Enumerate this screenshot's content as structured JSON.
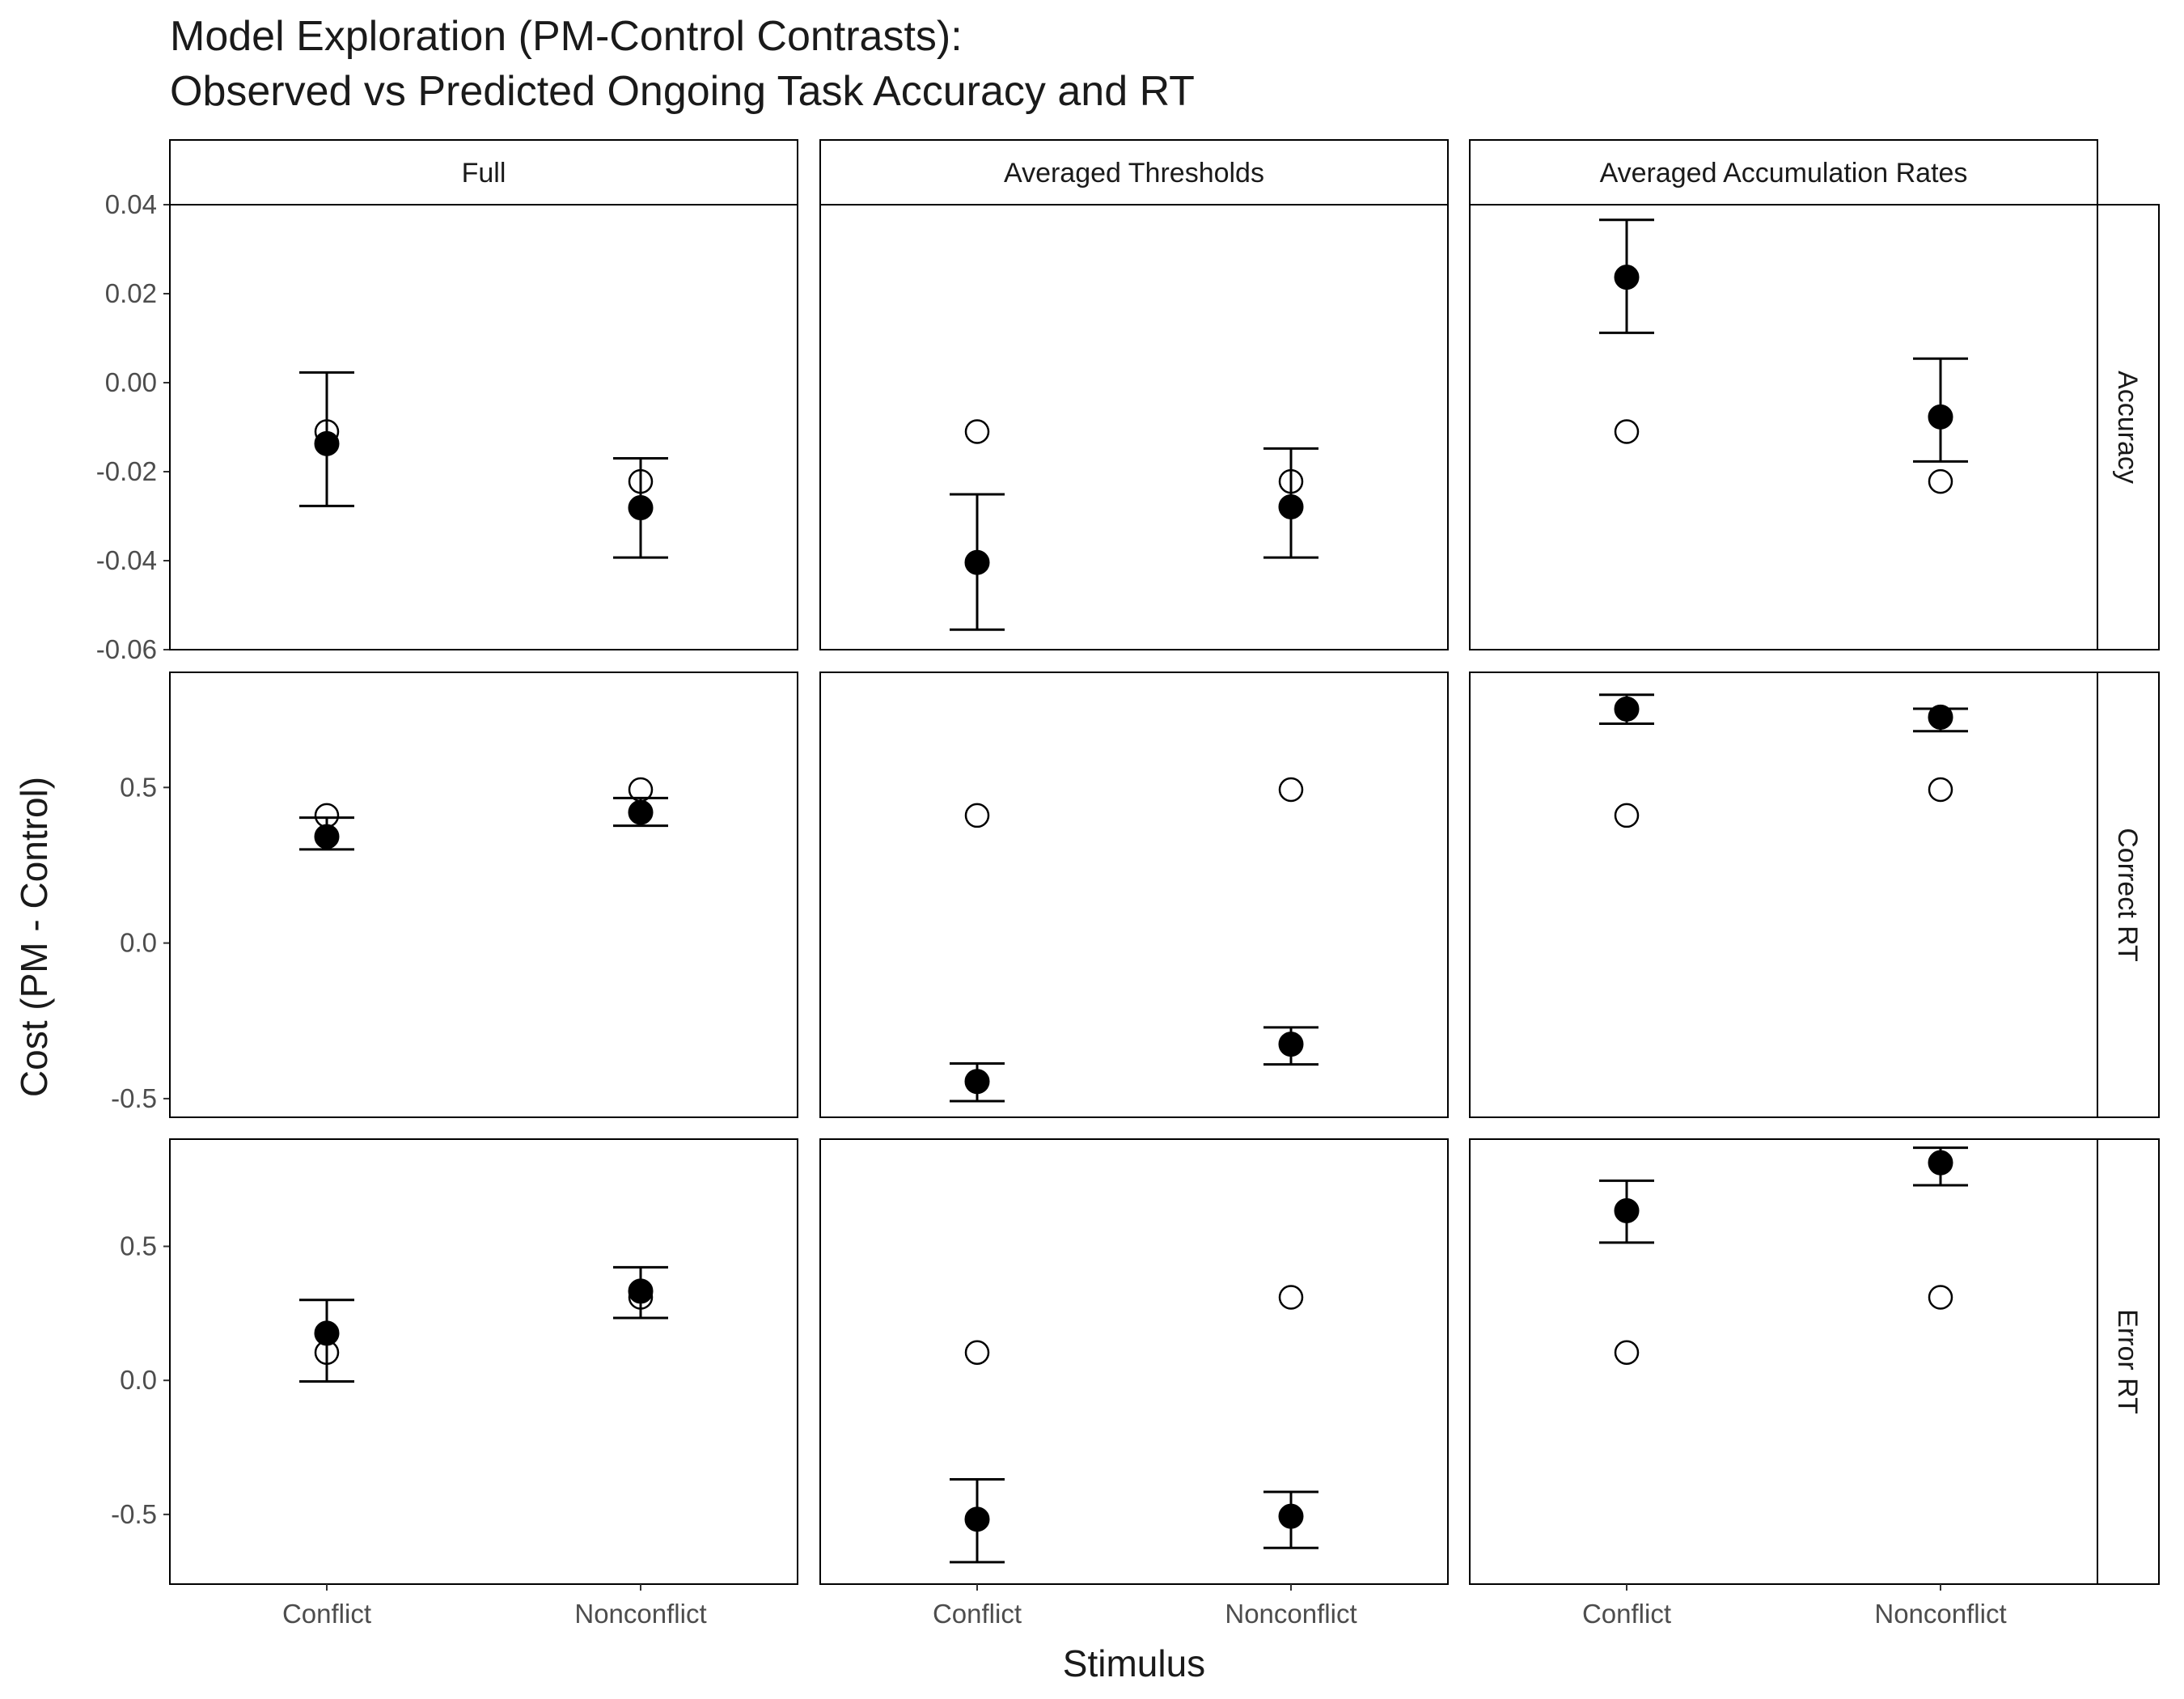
{
  "chart_data": {
    "type": "scatter",
    "title_lines": [
      "Model Exploration (PM-Control Contrasts):",
      "Observed vs Predicted Ongoing Task Accuracy and RT"
    ],
    "xlabel": "Stimulus",
    "ylabel": "Cost (PM - Control)",
    "categories": [
      "Conflict",
      "Nonconflict"
    ],
    "columns": [
      "Full",
      "Averaged Thresholds",
      "Averaged Accumulation Rates"
    ],
    "rows": [
      {
        "name": "Accuracy",
        "ylim": [
          -0.06,
          0.04
        ],
        "ticks": [
          {
            "value": 0.04,
            "label": "0.04"
          },
          {
            "value": 0.02,
            "label": "0.02"
          },
          {
            "value": 0.0,
            "label": "0.00"
          },
          {
            "value": -0.02,
            "label": "-0.02"
          },
          {
            "value": -0.04,
            "label": "-0.04"
          },
          {
            "value": -0.06,
            "label": "-0.06"
          }
        ]
      },
      {
        "name": "Correct RT",
        "ylim": [
          -0.56,
          0.87
        ],
        "ticks": [
          {
            "value": 0.5,
            "label": "0.5"
          },
          {
            "value": 0.0,
            "label": "0.0"
          },
          {
            "value": -0.5,
            "label": "-0.5"
          }
        ]
      },
      {
        "name": "Error RT",
        "ylim": [
          -0.76,
          0.9
        ],
        "ticks": [
          {
            "value": 0.5,
            "label": "0.5"
          },
          {
            "value": 0.0,
            "label": "0.0"
          },
          {
            "value": -0.5,
            "label": "-0.5"
          }
        ]
      }
    ],
    "panels": [
      {
        "row": "Accuracy",
        "column": "Full",
        "points": [
          {
            "category": "Conflict",
            "observed": -0.011,
            "predicted": -0.0137,
            "lower": -0.0277,
            "upper": 0.0023
          },
          {
            "category": "Nonconflict",
            "observed": -0.0222,
            "predicted": -0.0281,
            "lower": -0.0393,
            "upper": -0.017
          }
        ]
      },
      {
        "row": "Accuracy",
        "column": "Averaged Thresholds",
        "points": [
          {
            "category": "Conflict",
            "observed": -0.011,
            "predicted": -0.0404,
            "lower": -0.0555,
            "upper": -0.0251
          },
          {
            "category": "Nonconflict",
            "observed": -0.0222,
            "predicted": -0.0279,
            "lower": -0.0393,
            "upper": -0.0148
          }
        ]
      },
      {
        "row": "Accuracy",
        "column": "Averaged Accumulation Rates",
        "points": [
          {
            "category": "Conflict",
            "observed": -0.011,
            "predicted": 0.0237,
            "lower": 0.0112,
            "upper": 0.0366
          },
          {
            "category": "Nonconflict",
            "observed": -0.0222,
            "predicted": -0.0077,
            "lower": -0.0177,
            "upper": 0.0054
          }
        ]
      },
      {
        "row": "Correct RT",
        "column": "Full",
        "points": [
          {
            "category": "Conflict",
            "observed": 0.41,
            "predicted": 0.342,
            "lower": 0.301,
            "upper": 0.403
          },
          {
            "category": "Nonconflict",
            "observed": 0.493,
            "predicted": 0.42,
            "lower": 0.377,
            "upper": 0.466
          }
        ]
      },
      {
        "row": "Correct RT",
        "column": "Averaged Thresholds",
        "points": [
          {
            "category": "Conflict",
            "observed": 0.41,
            "predicted": -0.445,
            "lower": -0.508,
            "upper": -0.387
          },
          {
            "category": "Nonconflict",
            "observed": 0.493,
            "predicted": -0.325,
            "lower": -0.39,
            "upper": -0.271
          }
        ]
      },
      {
        "row": "Correct RT",
        "column": "Averaged Accumulation Rates",
        "points": [
          {
            "category": "Conflict",
            "observed": 0.41,
            "predicted": 0.752,
            "lower": 0.705,
            "upper": 0.798
          },
          {
            "category": "Nonconflict",
            "observed": 0.493,
            "predicted": 0.726,
            "lower": 0.681,
            "upper": 0.753
          }
        ]
      },
      {
        "row": "Error RT",
        "column": "Full",
        "points": [
          {
            "category": "Conflict",
            "observed": 0.104,
            "predicted": 0.176,
            "lower": -0.004,
            "upper": 0.3
          },
          {
            "category": "Nonconflict",
            "observed": 0.31,
            "predicted": 0.333,
            "lower": 0.233,
            "upper": 0.422
          }
        ]
      },
      {
        "row": "Error RT",
        "column": "Averaged Thresholds",
        "points": [
          {
            "category": "Conflict",
            "observed": 0.104,
            "predicted": -0.518,
            "lower": -0.678,
            "upper": -0.369
          },
          {
            "category": "Nonconflict",
            "observed": 0.31,
            "predicted": -0.507,
            "lower": -0.625,
            "upper": -0.416
          }
        ]
      },
      {
        "row": "Error RT",
        "column": "Averaged Accumulation Rates",
        "points": [
          {
            "category": "Conflict",
            "observed": 0.104,
            "predicted": 0.633,
            "lower": 0.514,
            "upper": 0.745
          },
          {
            "category": "Nonconflict",
            "observed": 0.31,
            "predicted": 0.812,
            "lower": 0.728,
            "upper": 0.868
          }
        ]
      }
    ],
    "marker_styles": {
      "observed": "open-circle",
      "predicted": "filled-circle"
    },
    "grid": false,
    "legend": "none",
    "colors": {
      "ink": "#000000",
      "tick_text": "#4d4d4d",
      "background": "#ffffff"
    }
  }
}
